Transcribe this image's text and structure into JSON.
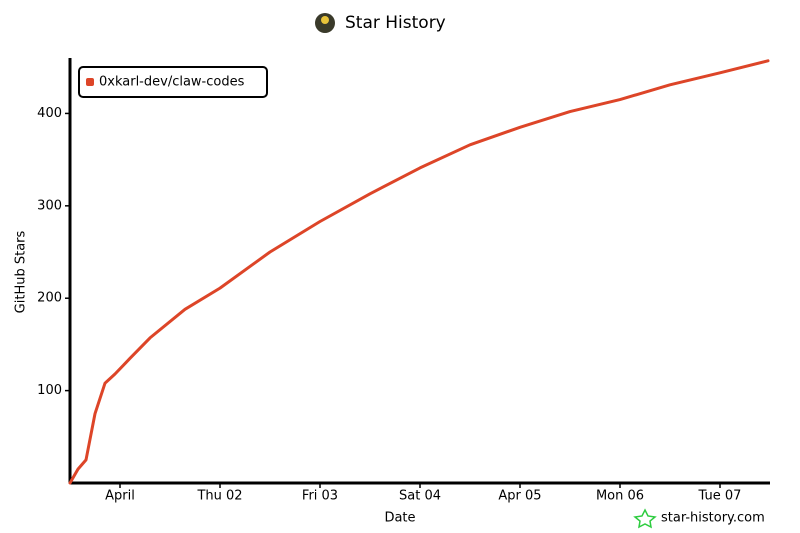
{
  "chart_data": {
    "type": "line",
    "title": "Star History",
    "xlabel": "Date",
    "ylabel": "GitHub Stars",
    "watermark": "star-history.com",
    "x": [
      -0.5,
      -0.42,
      -0.34,
      -0.25,
      -0.15,
      -0.05,
      0.1,
      0.3,
      0.65,
      1.0,
      1.5,
      2.0,
      2.5,
      3.0,
      3.5,
      4.0,
      4.5,
      5.0,
      5.5,
      6.0,
      6.48
    ],
    "series": [
      {
        "name": "0xkarl-dev/claw-codes",
        "color": "#dd4528",
        "values": [
          0,
          15,
          25,
          75,
          108,
          118,
          135,
          157,
          188,
          211,
          250,
          283,
          313,
          341,
          366,
          385,
          402,
          415,
          431,
          444,
          457
        ]
      }
    ],
    "xlim": [
      -0.5,
      6.5
    ],
    "xticks": [
      {
        "value": 0,
        "label": "April"
      },
      {
        "value": 1,
        "label": "Thu 02"
      },
      {
        "value": 2,
        "label": "Fri 03"
      },
      {
        "value": 3,
        "label": "Sat 04"
      },
      {
        "value": 4,
        "label": "Apr 05"
      },
      {
        "value": 5,
        "label": "Mon 06"
      },
      {
        "value": 6,
        "label": "Tue 07"
      }
    ],
    "ylim": [
      0,
      460
    ],
    "yticks": [
      100,
      200,
      300,
      400
    ],
    "grid": false,
    "legend": "top-left"
  }
}
